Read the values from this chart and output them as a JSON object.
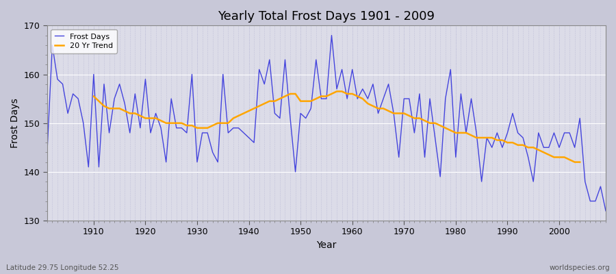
{
  "title": "Yearly Total Frost Days 1901 - 2009",
  "xlabel": "Year",
  "ylabel": "Frost Days",
  "bottom_left_text": "Latitude 29.75 Longitude 52.25",
  "bottom_right_text": "worldspecies.org",
  "legend_labels": [
    "Frost Days",
    "20 Yr Trend"
  ],
  "line_color": "#4444dd",
  "trend_color": "#FFA500",
  "plot_bg_color": "#dcdce8",
  "fig_bg_color": "#c8c8d8",
  "ylim": [
    130,
    170
  ],
  "xlim": [
    1901,
    2009
  ],
  "yticks": [
    130,
    140,
    150,
    160,
    170
  ],
  "xticks": [
    1910,
    1920,
    1930,
    1940,
    1950,
    1960,
    1970,
    1980,
    1990,
    2000
  ],
  "years": [
    1901,
    1902,
    1903,
    1904,
    1905,
    1906,
    1907,
    1908,
    1909,
    1910,
    1911,
    1912,
    1913,
    1914,
    1915,
    1916,
    1917,
    1918,
    1919,
    1920,
    1921,
    1922,
    1923,
    1924,
    1925,
    1926,
    1927,
    1928,
    1929,
    1930,
    1931,
    1932,
    1933,
    1934,
    1935,
    1936,
    1937,
    1938,
    1939,
    1940,
    1941,
    1942,
    1943,
    1944,
    1945,
    1946,
    1947,
    1948,
    1949,
    1950,
    1951,
    1952,
    1953,
    1954,
    1955,
    1956,
    1957,
    1958,
    1959,
    1960,
    1961,
    1962,
    1963,
    1964,
    1965,
    1966,
    1967,
    1968,
    1969,
    1970,
    1971,
    1972,
    1973,
    1974,
    1975,
    1976,
    1977,
    1978,
    1979,
    1980,
    1981,
    1982,
    1983,
    1984,
    1985,
    1986,
    1987,
    1988,
    1989,
    1990,
    1991,
    1992,
    1993,
    1994,
    1995,
    1996,
    1997,
    1998,
    1999,
    2000,
    2001,
    2002,
    2003,
    2004,
    2005,
    2006,
    2007,
    2008,
    2009
  ],
  "frost_days": [
    144,
    166,
    159,
    158,
    152,
    156,
    155,
    150,
    141,
    160,
    141,
    158,
    148,
    155,
    158,
    154,
    148,
    156,
    149,
    159,
    148,
    152,
    149,
    142,
    155,
    149,
    149,
    148,
    160,
    142,
    148,
    148,
    144,
    142,
    160,
    148,
    149,
    149,
    148,
    147,
    146,
    161,
    158,
    163,
    152,
    151,
    163,
    151,
    140,
    152,
    151,
    153,
    163,
    155,
    155,
    168,
    157,
    161,
    155,
    161,
    155,
    157,
    155,
    158,
    152,
    155,
    158,
    152,
    143,
    155,
    155,
    148,
    156,
    143,
    155,
    147,
    139,
    155,
    161,
    143,
    156,
    148,
    155,
    148,
    138,
    147,
    145,
    148,
    145,
    148,
    152,
    148,
    147,
    143,
    138,
    148,
    145,
    145,
    148,
    145,
    148,
    148,
    145,
    151,
    138,
    134,
    134,
    137,
    132
  ],
  "trend_values": [
    null,
    null,
    null,
    null,
    null,
    null,
    null,
    null,
    null,
    155.5,
    154.5,
    153.5,
    153.0,
    153.0,
    153.0,
    152.5,
    152.0,
    152.0,
    151.5,
    151.0,
    151.0,
    151.0,
    150.5,
    150.0,
    150.0,
    150.0,
    150.0,
    149.5,
    149.5,
    149.0,
    149.0,
    149.0,
    149.5,
    150.0,
    150.0,
    150.0,
    151.0,
    151.5,
    152.0,
    152.5,
    153.0,
    153.5,
    154.0,
    154.5,
    154.5,
    155.0,
    155.5,
    156.0,
    156.0,
    154.5,
    154.5,
    154.5,
    155.0,
    155.5,
    155.5,
    156.0,
    156.5,
    156.5,
    156.0,
    156.0,
    155.5,
    155.0,
    154.0,
    153.5,
    153.0,
    153.0,
    152.5,
    152.0,
    152.0,
    152.0,
    151.5,
    151.0,
    151.0,
    150.5,
    150.0,
    150.0,
    149.5,
    149.0,
    148.5,
    148.0,
    148.0,
    148.0,
    147.5,
    147.0,
    147.0,
    147.0,
    147.0,
    146.5,
    146.5,
    146.0,
    146.0,
    145.5,
    145.5,
    145.0,
    145.0,
    144.5,
    144.0,
    143.5,
    143.0,
    143.0,
    143.0,
    142.5,
    142.0,
    142.0,
    null,
    null,
    null,
    null,
    null
  ]
}
